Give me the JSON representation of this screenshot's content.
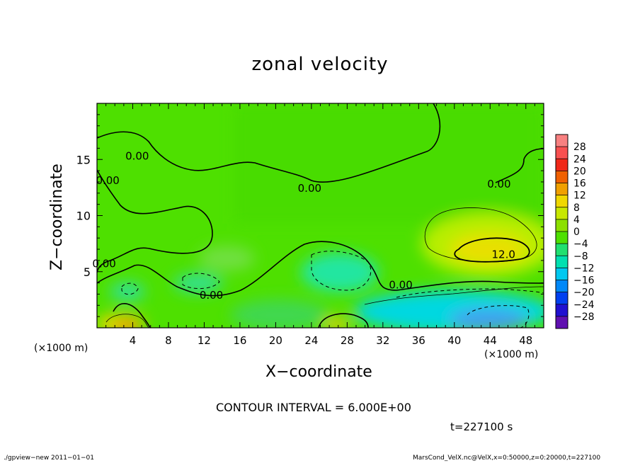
{
  "chart_data": {
    "type": "heatmap",
    "title": "zonal velocity",
    "xlabel": "X−coordinate",
    "ylabel": "Z−coordinate",
    "x_unit_label": "(×1000 m)",
    "y_unit_label": "(×1000 m)",
    "x_ticks": [
      "4",
      "8",
      "12",
      "16",
      "20",
      "24",
      "28",
      "32",
      "36",
      "40",
      "44",
      "48"
    ],
    "y_ticks": [
      "5",
      "10",
      "15"
    ],
    "xlim": [
      0,
      50
    ],
    "ylim": [
      0,
      20
    ],
    "colorbar_ticks": [
      "28",
      "24",
      "20",
      "16",
      "12",
      "8",
      "4",
      "0",
      "−4",
      "−8",
      "−12",
      "−16",
      "−20",
      "−24",
      "−28"
    ],
    "colorbar_range": [
      -30,
      30
    ],
    "contour_labels": [
      {
        "text": "0.00",
        "x": 4.5,
        "y": 15
      },
      {
        "text": "0.00",
        "x": 1.2,
        "y": 12.8
      },
      {
        "text": "0.00",
        "x": 23.8,
        "y": 12.1
      },
      {
        "text": "0.00",
        "x": 45,
        "y": 12.5
      },
      {
        "text": "0.00",
        "x": 0.8,
        "y": 5.4
      },
      {
        "text": "0.00",
        "x": 12.8,
        "y": 2.6
      },
      {
        "text": "0.00",
        "x": 34,
        "y": 3.5
      },
      {
        "text": "12.0",
        "x": 45.5,
        "y": 6.2
      }
    ],
    "contour_interval_text": "CONTOUR INTERVAL = 6.000E+00",
    "time_text": "t=227100 s",
    "grid": false,
    "colorbar_position": "right"
  },
  "footer": {
    "left": "./gpview−new   2011−01−01",
    "right": "MarsCond_VelX.nc@VelX,x=0:50000,z=0:20000,t=227100"
  }
}
